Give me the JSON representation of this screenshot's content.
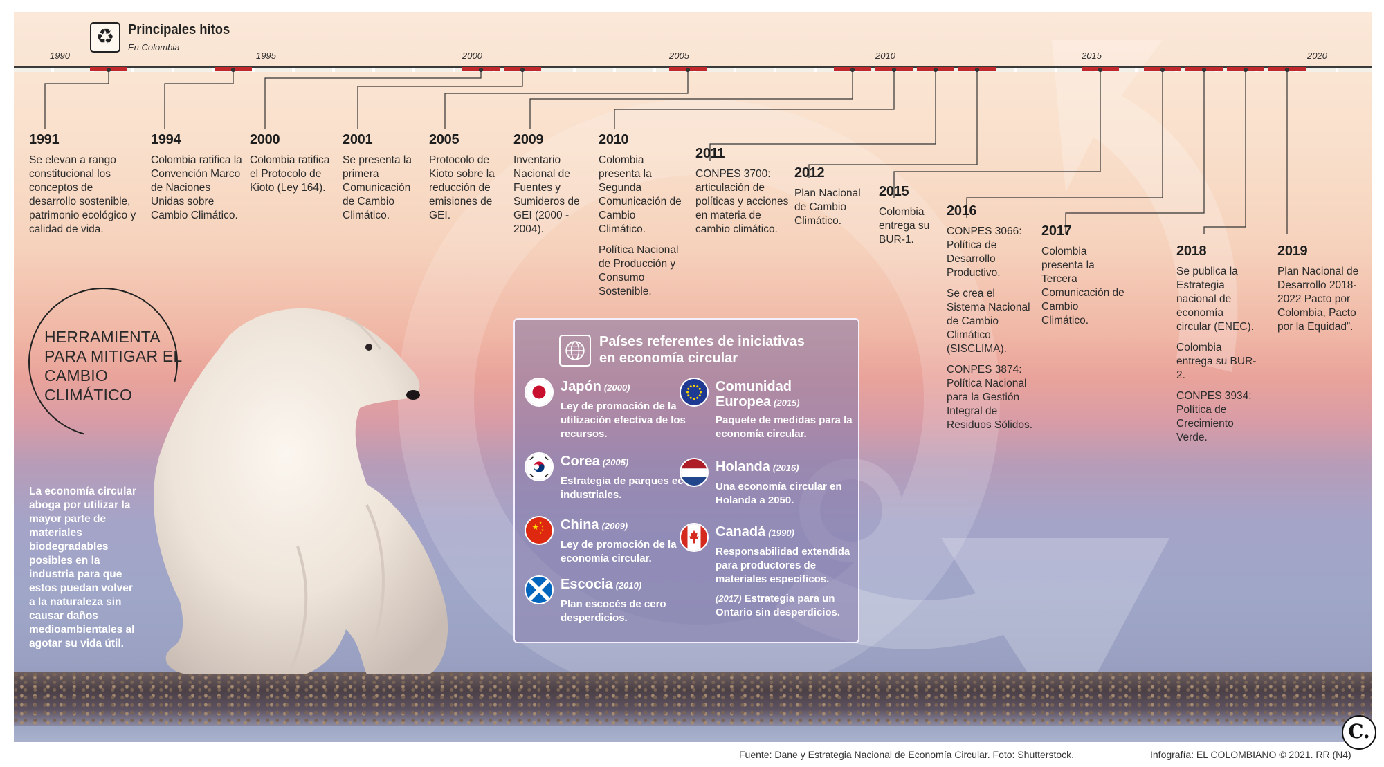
{
  "header": {
    "title": "Principales hitos",
    "subtitle": "En Colombia",
    "icon": "recycle-icon"
  },
  "axis_years": [
    "1990",
    "1995",
    "2000",
    "2005",
    "2010",
    "2015",
    "2020"
  ],
  "milestones": [
    {
      "year": "1991",
      "desc": [
        "Se elevan a rango constitucional los conceptos de desarrollo sostenible, patrimonio ecológico y calidad de vida."
      ]
    },
    {
      "year": "1994",
      "desc": [
        "Colombia ratifica la Convención Marco de Naciones Unidas sobre Cambio Climático."
      ]
    },
    {
      "year": "2000",
      "desc": [
        "Colombia ratifica el Protocolo de Kioto (Ley 164)."
      ]
    },
    {
      "year": "2001",
      "desc": [
        "Se presenta la primera Comunicación de Cambio Climático."
      ]
    },
    {
      "year": "2005",
      "desc": [
        "Protocolo de Kioto sobre la reducción de emisiones de GEI."
      ]
    },
    {
      "year": "2009",
      "desc": [
        "Inventario Nacional de Fuentes y Sumideros de GEI (2000 - 2004)."
      ]
    },
    {
      "year": "2010",
      "desc": [
        "Colombia presenta la Segunda Comunicación de Cambio Climático.",
        "Política Nacional de Producción y Consumo Sostenible."
      ]
    },
    {
      "year": "2011",
      "desc": [
        "CONPES 3700: articulación de políticas y acciones en materia de cambio climático."
      ]
    },
    {
      "year": "2012",
      "desc": [
        "Plan Nacional de Cambio Climático."
      ]
    },
    {
      "year": "2015",
      "desc": [
        "Colombia entrega su BUR-1."
      ]
    },
    {
      "year": "2016",
      "desc": [
        "CONPES 3066: Política de Desarrollo Productivo.",
        "Se crea el Sistema Nacional de Cambio Climático (SISCLIMA).",
        "CONPES 3874: Política Nacional para la Gestión Integral de Residuos Sólidos."
      ]
    },
    {
      "year": "2017",
      "desc": [
        "Colombia presenta la Tercera Comunicación de Cambio Climático."
      ]
    },
    {
      "year": "2018",
      "desc": [
        "Se publica la Estrategia nacional de economía circular (ENEC).",
        "Colombia entrega su BUR-2.",
        "CONPES 3934: Política de Crecimiento Verde."
      ]
    },
    {
      "year": "2019",
      "desc": [
        "Plan Nacional de Desarrollo 2018-2022 Pacto por Colombia, Pacto por la Equidad”."
      ]
    }
  ],
  "side": {
    "tool_title": "HERRAMIENTA PARA MITIGAR EL CAMBIO CLIMÁTICO",
    "note": "La economía circular aboga por utilizar la mayor parte de materiales biodegradables posibles en la industria para que estos puedan volver a la naturaleza sin causar daños medioambientales al agotar su vida útil."
  },
  "countries_box": {
    "title": "Países referentes de iniciativas en economía circular",
    "icon": "globe-icon",
    "countries": [
      {
        "name": "Japón",
        "year": "(2000)",
        "desc": "Ley de promoción de la utilización efectiva de los recursos.",
        "flag": "japan-flag-icon"
      },
      {
        "name": "Comunidad Europea",
        "year": "(2015)",
        "desc": "Paquete de medidas para la economía circular.",
        "flag": "eu-flag-icon"
      },
      {
        "name": "Corea",
        "year": "(2005)",
        "desc": "Estrategia de parques eco-industriales.",
        "flag": "korea-flag-icon"
      },
      {
        "name": "Holanda",
        "year": "(2016)",
        "desc": "Una economía circular en Holanda a 2050.",
        "flag": "netherlands-flag-icon"
      },
      {
        "name": "China",
        "year": "(2009)",
        "desc": "Ley de promoción de la economía circular.",
        "flag": "china-flag-icon"
      },
      {
        "name": "Canadá",
        "year": "(1990)",
        "desc": "Responsabilidad extendida para productores de materiales específicos.",
        "desc2_year": "(2017)",
        "desc2": "Estrategia para un Ontario sin desperdicios.",
        "flag": "canada-flag-icon"
      },
      {
        "name": "Escocia",
        "year": "(2010)",
        "desc": "Plan escocés de cero desperdicios.",
        "flag": "scotland-flag-icon"
      }
    ]
  },
  "footer": {
    "source": "Fuente: Dane y Estrategia Nacional de Economía Circular. Foto: Shutterstock.",
    "credit": "Infografía: EL COLOMBIANO © 2021. RR (N4)",
    "logo": "C."
  },
  "colors": {
    "tick_red": "#c0282b",
    "box_fill": "#8478aa",
    "sky_top": "#fbe8d8",
    "sky_mid": "#e9a39a",
    "sky_bottom": "#9aa1c2"
  }
}
